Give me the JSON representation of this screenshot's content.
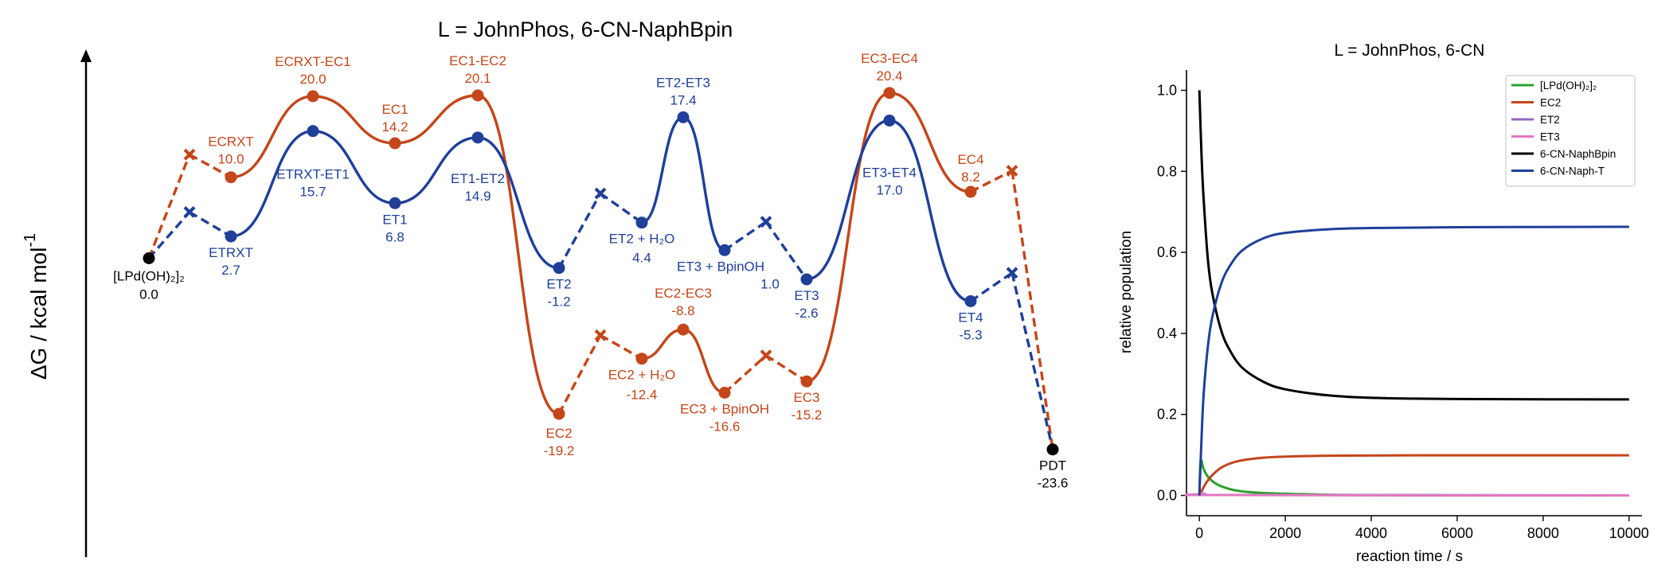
{
  "energy_diagram": {
    "title": "L = JohnPhos, 6-CN-NaphBpin",
    "ylabel": "ΔG / kcal mol",
    "ylabel_sup": "-1",
    "colors": {
      "EC": "#c4461a",
      "ET": "#1f3f99",
      "shared": "#000000"
    },
    "states": [
      {
        "id": "LPd",
        "label": "[LPd(OH)₂]₂",
        "value_text": "0.0",
        "g": 0.0,
        "kind": "min",
        "series": "shared",
        "color_key": "shared"
      },
      {
        "id": "ECRXT_TS",
        "label": "",
        "value_text": "",
        "g": 12.8,
        "kind": "x",
        "series": "EC"
      },
      {
        "id": "ECRXT",
        "label": "ECRXT",
        "value_text": "10.0",
        "g": 10.0,
        "kind": "min",
        "series": "EC"
      },
      {
        "id": "ECRXT-EC1",
        "label": "ECRXT-EC1",
        "value_text": "20.0",
        "g": 20.0,
        "kind": "ts",
        "series": "EC"
      },
      {
        "id": "EC1",
        "label": "EC1",
        "value_text": "14.2",
        "g": 14.2,
        "kind": "min",
        "series": "EC"
      },
      {
        "id": "EC1-EC2",
        "label": "EC1-EC2",
        "value_text": "20.1",
        "g": 20.1,
        "kind": "ts",
        "series": "EC"
      },
      {
        "id": "EC2",
        "label": "EC2",
        "value_text": "-19.2",
        "g": -19.2,
        "kind": "min",
        "series": "EC"
      },
      {
        "id": "EC2w_TS",
        "label": "",
        "value_text": "",
        "g": -9.5,
        "kind": "x",
        "series": "EC"
      },
      {
        "id": "EC2w",
        "label": "EC2 + H₂O",
        "value_text": "-12.4",
        "g": -12.4,
        "kind": "min",
        "series": "EC"
      },
      {
        "id": "EC2-EC3",
        "label": "EC2-EC3",
        "value_text": "-8.8",
        "g": -8.8,
        "kind": "ts",
        "series": "EC"
      },
      {
        "id": "EC3B",
        "label": "EC3 + BpinOH",
        "value_text": "-16.6",
        "g": -16.6,
        "kind": "min",
        "series": "EC"
      },
      {
        "id": "EC3B_TS",
        "label": "",
        "value_text": "",
        "g": -12.0,
        "kind": "x",
        "series": "EC"
      },
      {
        "id": "EC3",
        "label": "EC3",
        "value_text": "-15.2",
        "g": -15.2,
        "kind": "min",
        "series": "EC"
      },
      {
        "id": "EC3-EC4",
        "label": "EC3-EC4",
        "value_text": "20.4",
        "g": 20.4,
        "kind": "ts",
        "series": "EC"
      },
      {
        "id": "EC4",
        "label": "EC4",
        "value_text": "8.2",
        "g": 8.2,
        "kind": "min",
        "series": "EC"
      },
      {
        "id": "EC4_TS",
        "label": "",
        "value_text": "",
        "g": 10.8,
        "kind": "x",
        "series": "EC"
      },
      {
        "id": "ETRXT_TS",
        "label": "",
        "value_text": "",
        "g": 5.7,
        "kind": "x",
        "series": "ET"
      },
      {
        "id": "ETRXT",
        "label": "ETRXT",
        "value_text": "2.7",
        "g": 2.7,
        "kind": "min",
        "series": "ET"
      },
      {
        "id": "ETRXT-ET1",
        "label": "ETRXT-ET1",
        "value_text": "15.7",
        "g": 15.7,
        "kind": "ts",
        "series": "ET"
      },
      {
        "id": "ET1",
        "label": "ET1",
        "value_text": "6.8",
        "g": 6.8,
        "kind": "min",
        "series": "ET"
      },
      {
        "id": "ET1-ET2",
        "label": "ET1-ET2",
        "value_text": "14.9",
        "g": 14.9,
        "kind": "ts",
        "series": "ET"
      },
      {
        "id": "ET2",
        "label": "ET2",
        "value_text": "-1.2",
        "g": -1.2,
        "kind": "min",
        "series": "ET"
      },
      {
        "id": "ET2w_TS",
        "label": "",
        "value_text": "",
        "g": 8.0,
        "kind": "x",
        "series": "ET"
      },
      {
        "id": "ET2w",
        "label": "ET2 + H₂O",
        "value_text": "4.4",
        "g": 4.4,
        "kind": "min",
        "series": "ET"
      },
      {
        "id": "ET2-ET3",
        "label": "ET2-ET3",
        "value_text": "17.4",
        "g": 17.4,
        "kind": "ts",
        "series": "ET"
      },
      {
        "id": "ET3B",
        "label": "ET3 + BpinOH",
        "value_text": "1.0",
        "g": 1.0,
        "kind": "min",
        "series": "ET"
      },
      {
        "id": "ET3B_TS",
        "label": "",
        "value_text": "",
        "g": 4.5,
        "kind": "x",
        "series": "ET"
      },
      {
        "id": "ET3",
        "label": "ET3",
        "value_text": "-2.6",
        "g": -2.6,
        "kind": "min",
        "series": "ET"
      },
      {
        "id": "ET3-ET4",
        "label": "ET3-ET4",
        "value_text": "17.0",
        "g": 17.0,
        "kind": "ts",
        "series": "ET"
      },
      {
        "id": "ET4",
        "label": "ET4",
        "value_text": "-5.3",
        "g": -5.3,
        "kind": "min",
        "series": "ET"
      },
      {
        "id": "ET4_TS",
        "label": "",
        "value_text": "",
        "g": -1.8,
        "kind": "x",
        "series": "ET"
      },
      {
        "id": "PDT",
        "label": "PDT",
        "value_text": "-23.6",
        "g": -23.6,
        "kind": "min",
        "series": "shared",
        "color_key": "shared"
      }
    ],
    "paths": [
      {
        "series": "EC",
        "sequence": [
          "LPd",
          "ECRXT_TS",
          "ECRXT",
          "ECRXT-EC1",
          "EC1",
          "EC1-EC2",
          "EC2",
          "EC2w_TS",
          "EC2w",
          "EC2-EC3",
          "EC3B",
          "EC3B_TS",
          "EC3",
          "EC3-EC4",
          "EC4",
          "EC4_TS",
          "PDT"
        ]
      },
      {
        "series": "ET",
        "sequence": [
          "LPd",
          "ETRXT_TS",
          "ETRXT",
          "ETRXT-ET1",
          "ET1",
          "ET1-ET2",
          "ET2",
          "ET2w_TS",
          "ET2w",
          "ET2-ET3",
          "ET3B",
          "ET3B_TS",
          "ET3",
          "ET3-ET4",
          "ET4",
          "ET4_TS",
          "PDT"
        ]
      }
    ],
    "dashed_segments": [
      [
        "LPd",
        "ECRXT_TS"
      ],
      [
        "ECRXT_TS",
        "ECRXT"
      ],
      [
        "EC2",
        "EC2w_TS"
      ],
      [
        "EC2w_TS",
        "EC2w"
      ],
      [
        "EC3B",
        "EC3B_TS"
      ],
      [
        "EC3B_TS",
        "EC3"
      ],
      [
        "EC4",
        "EC4_TS"
      ],
      [
        "EC4_TS",
        "PDT"
      ],
      [
        "LPd",
        "ETRXT_TS"
      ],
      [
        "ETRXT_TS",
        "ETRXT"
      ],
      [
        "ET2",
        "ET2w_TS"
      ],
      [
        "ET2w_TS",
        "ET2w"
      ],
      [
        "ET3B",
        "ET3B_TS"
      ],
      [
        "ET3B_TS",
        "ET3"
      ],
      [
        "ET4",
        "ET4_TS"
      ],
      [
        "ET4_TS",
        "PDT"
      ]
    ]
  },
  "chart_data": {
    "type": "line",
    "title": "L = JohnPhos, 6-CN",
    "xlabel": "reaction time / s",
    "ylabel": "relative population",
    "xlim": [
      -300,
      10300
    ],
    "ylim": [
      -0.05,
      1.05
    ],
    "xticks": [
      0,
      2000,
      4000,
      6000,
      8000,
      10000
    ],
    "yticks": [
      0.0,
      0.2,
      0.4,
      0.6,
      0.8,
      1.0
    ],
    "xtick_labels": [
      "0",
      "2000",
      "4000",
      "6000",
      "8000",
      "10000"
    ],
    "ytick_labels": [
      "0.0",
      "0.2",
      "0.4",
      "0.6",
      "0.8",
      "1.0"
    ],
    "grid": false,
    "legend_position": "top-right",
    "series": [
      {
        "name": "[LPd(OH)₂]₂",
        "color": "#2ca02c",
        "x": [
          0,
          30,
          100,
          200,
          400,
          700,
          1000,
          1500,
          2500,
          4000,
          10000
        ],
        "values": [
          0.0,
          0.085,
          0.065,
          0.046,
          0.028,
          0.016,
          0.01,
          0.006,
          0.003,
          0.001,
          0.0
        ]
      },
      {
        "name": "EC2",
        "color": "#c4461a",
        "x": [
          0,
          50,
          150,
          300,
          500,
          800,
          1200,
          1800,
          3000,
          5000,
          10000
        ],
        "values": [
          0.0,
          0.01,
          0.03,
          0.05,
          0.068,
          0.082,
          0.09,
          0.095,
          0.098,
          0.099,
          0.099
        ]
      },
      {
        "name": "ET2",
        "color": "#9467bd",
        "x": [
          0,
          30,
          150,
          500,
          10000
        ],
        "values": [
          0.0,
          0.006,
          0.003,
          0.001,
          0.0
        ]
      },
      {
        "name": "ET3",
        "color": "#e377c2",
        "x": [
          0,
          30,
          150,
          500,
          10000
        ],
        "values": [
          0.0,
          0.005,
          0.002,
          0.001,
          0.0
        ]
      },
      {
        "name": "6-CN-NaphBpin",
        "color": "#000000",
        "x": [
          0,
          50,
          100,
          200,
          300,
          500,
          700,
          1000,
          1500,
          2000,
          3000,
          4000,
          6000,
          10000
        ],
        "values": [
          1.0,
          0.84,
          0.73,
          0.58,
          0.5,
          0.41,
          0.36,
          0.315,
          0.28,
          0.262,
          0.247,
          0.241,
          0.238,
          0.237
        ]
      },
      {
        "name": "6-CN-Naph-T",
        "color": "#1f3f99",
        "x": [
          0,
          50,
          100,
          200,
          300,
          500,
          700,
          1000,
          1500,
          2000,
          3000,
          4000,
          6000,
          10000
        ],
        "values": [
          0.0,
          0.14,
          0.25,
          0.37,
          0.44,
          0.52,
          0.565,
          0.605,
          0.635,
          0.648,
          0.657,
          0.66,
          0.662,
          0.663
        ]
      }
    ]
  }
}
